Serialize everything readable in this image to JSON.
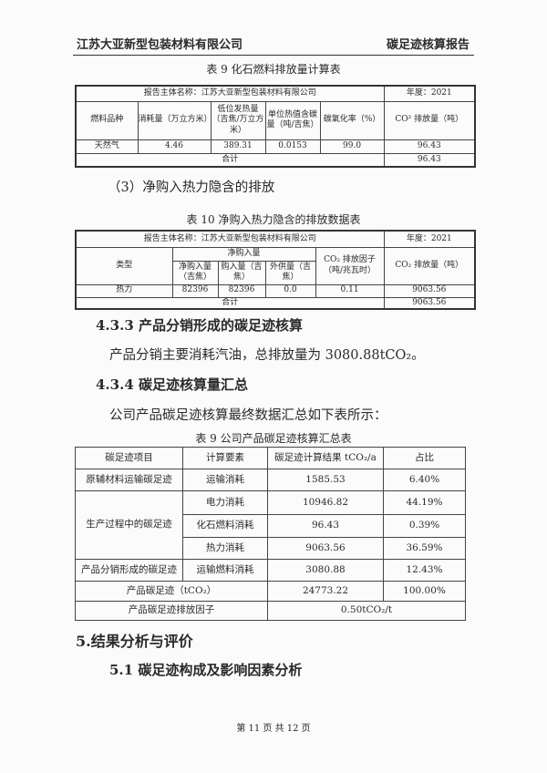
{
  "header": {
    "company": "江苏大亚新型包装材料有限公司",
    "report": "碳足迹核算报告"
  },
  "table_fossil": {
    "caption": "表 9  化石燃料排放量计算表",
    "entity": "报告主体名称：江苏大亚新型包装材料有限公司",
    "year": "年度：2021",
    "headers": [
      "燃料品种",
      "消耗量（万立方米）",
      "低位发热量（吉焦/万立方米）",
      "单位热值含碳量（吨/吉焦）",
      "碳氧化率（%）",
      "CO² 排放量（吨）"
    ],
    "row": [
      "天然气",
      "4.46",
      "389.31",
      "0.0153",
      "99.0",
      "96.43"
    ],
    "total_label": "合计",
    "total": "96.43"
  },
  "section_3": "（3）净购入热力隐含的排放",
  "table_heat": {
    "caption": "表 10  净购入热力隐含的排放数据表",
    "entity": "报告主体名称：江苏大亚新型包装材料有限公司",
    "year": "年度：2021",
    "type": "类型",
    "group": "净购入量",
    "sub": [
      "净购入量（吉焦）",
      "购入量（吉焦）",
      "外供量（吉焦）"
    ],
    "factor": "CO₂ 排放因子（吨/兆瓦时）",
    "emission": "CO₂ 排放量（吨）",
    "row": [
      "热力",
      "82396",
      "82396",
      "0.0",
      "0.11",
      "9063.56"
    ],
    "total_label": "合计",
    "total": "9063.56"
  },
  "s433": {
    "heading": "4.3.3 产品分销形成的碳足迹核算",
    "text": "产品分销主要消耗汽油，总排放量为 3080.88tCO₂。"
  },
  "s434": {
    "heading": "4.3.4 碳足迹核算量汇总",
    "text": "公司产品碳足迹核算最终数据汇总如下表所示："
  },
  "table_summary": {
    "caption": "表 9  公司产品碳足迹核算汇总表",
    "headers": [
      "碳足迹项目",
      "计算要素",
      "碳足迹计算结果 tCO₂/a",
      "占比"
    ],
    "g1": "原辅材料运输碳足迹",
    "g2": "生产过程中的碳足迹",
    "g3": "产品分销形成的碳足迹",
    "rows": [
      [
        "运输消耗",
        "1585.53",
        "6.40%"
      ],
      [
        "电力消耗",
        "10946.82",
        "44.19%"
      ],
      [
        "化石燃料消耗",
        "96.43",
        "0.39%"
      ],
      [
        "热力消耗",
        "9063.56",
        "36.59%"
      ],
      [
        "运输燃料消耗",
        "3080.88",
        "12.43%"
      ]
    ],
    "total_label": "产品碳足迹（tCO₂）",
    "total": "24773.22",
    "total_pct": "100.00%",
    "factor_label": "产品碳足迹排放因子",
    "factor": "0.50tCO₂/t"
  },
  "s5": "5.结果分析与评价",
  "s51": "5.1 碳足迹构成及影响因素分析",
  "footer": "第 11 页 共 12 页"
}
